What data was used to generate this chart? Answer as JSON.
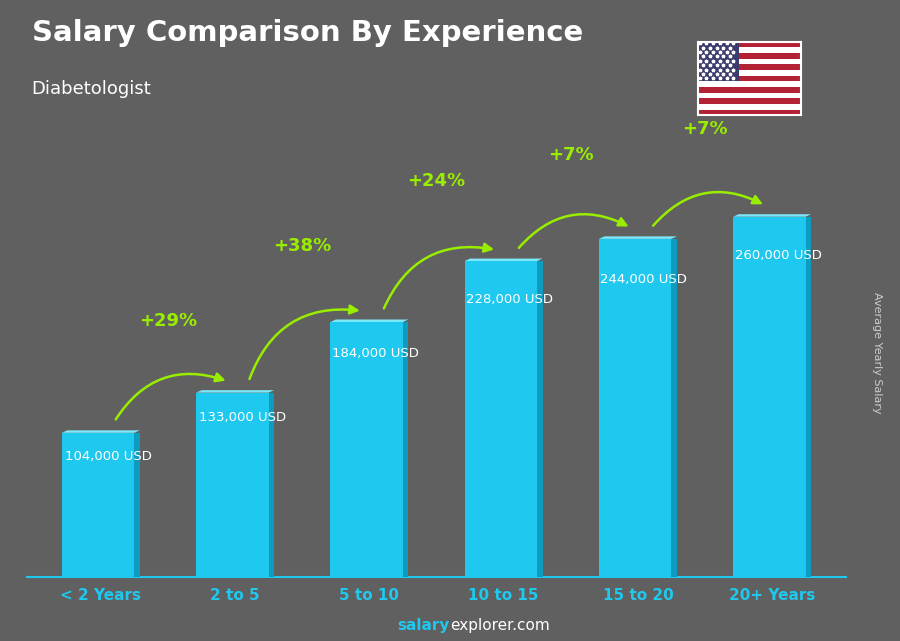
{
  "title": "Salary Comparison By Experience",
  "subtitle": "Diabetologist",
  "categories": [
    "< 2 Years",
    "2 to 5",
    "5 to 10",
    "10 to 15",
    "15 to 20",
    "20+ Years"
  ],
  "values": [
    104000,
    133000,
    184000,
    228000,
    244000,
    260000
  ],
  "value_labels": [
    "104,000 USD",
    "133,000 USD",
    "184,000 USD",
    "228,000 USD",
    "244,000 USD",
    "260,000 USD"
  ],
  "pct_changes": [
    "+29%",
    "+38%",
    "+24%",
    "+7%",
    "+7%"
  ],
  "bar_color_main": "#1EC8EE",
  "bar_color_right": "#0D9BBF",
  "bar_color_top": "#7DE8F8",
  "bg_color": "#606060",
  "title_color": "#ffffff",
  "subtitle_color": "#ffffff",
  "value_label_color": "#ffffff",
  "pct_color": "#99EE00",
  "xlabel_color": "#1EC8EE",
  "footer_salary_color": "#1EC8EE",
  "footer_explorer_color": "#ffffff",
  "ylabel_text": "Average Yearly Salary",
  "ylabel_color": "#cccccc",
  "ylim_max": 310000,
  "bar_width": 0.58,
  "arrow_color": "#99EE00",
  "spine_color": "#1EC8EE"
}
